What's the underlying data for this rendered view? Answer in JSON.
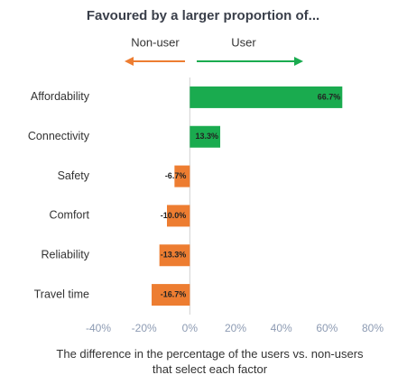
{
  "chart_data": {
    "type": "diverging-bar",
    "title": "Favoured by a larger proportion of...",
    "legend": [
      {
        "name": "Non-user",
        "color": "#ed7d31"
      },
      {
        "name": "User",
        "color": "#1aab4f"
      }
    ],
    "categories": [
      "Affordability",
      "Connectivity",
      "Safety",
      "Comfort",
      "Reliability",
      "Travel time"
    ],
    "values": [
      66.7,
      13.3,
      -6.7,
      -10.0,
      -13.3,
      -16.7
    ],
    "value_labels": [
      "66.7%",
      "13.3%",
      "-6.7%",
      "-10.0%",
      "-13.3%",
      "-16.7%"
    ],
    "xlim": [
      -40,
      80
    ],
    "xticks": [
      {
        "value": -40,
        "label": "-40%"
      },
      {
        "value": -20,
        "label": "-20%"
      },
      {
        "value": 0,
        "label": "0%"
      },
      {
        "value": 20,
        "label": "20%"
      },
      {
        "value": 40,
        "label": "40%"
      },
      {
        "value": 60,
        "label": "60%"
      },
      {
        "value": 80,
        "label": "80%"
      }
    ],
    "x_label": "The difference in the percentage of the users vs. non-users that select each factor"
  }
}
